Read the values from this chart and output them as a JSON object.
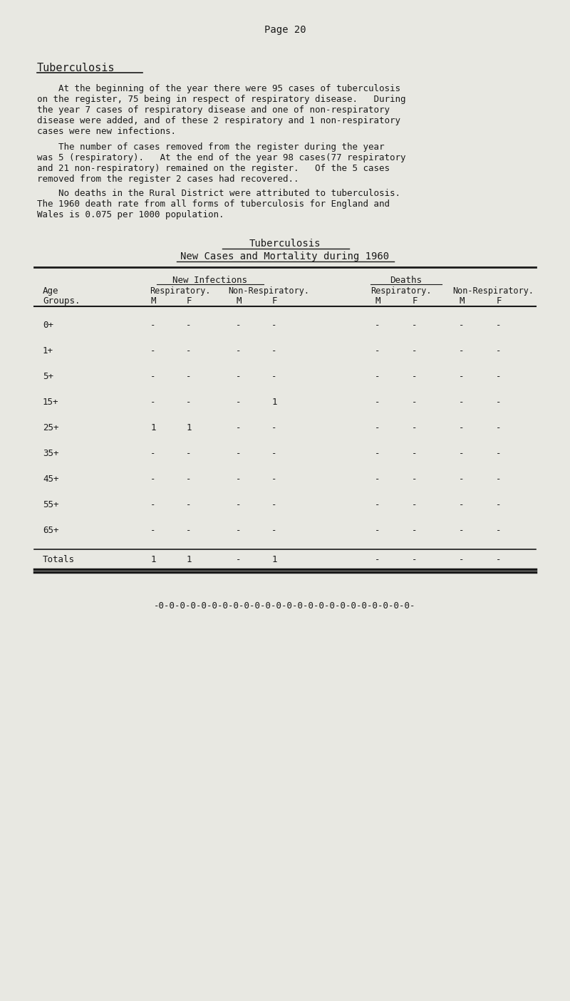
{
  "bg_color": "#e8e8e2",
  "text_color": "#1a1a1a",
  "page_header": "Page 20",
  "section_title": "Tuberculosis",
  "paragraphs": [
    "    At the beginning of the year there were 95 cases of tuberculosis\non the register, 75 being in respect of respiratory disease.   During\nthe year 7 cases of respiratory disease and one of non-respiratory\ndisease were added, and of these 2 respiratory and 1 non-respiratory\ncases were new infections.",
    "    The number of cases removed from the register during the year\nwas 5 (respiratory).   At the end of the year 98 cases(77 respiratory\nand 21 non-respiratory) remained on the register.   Of the 5 cases\nremoved from the register 2 cases had recovered..",
    "    No deaths in the Rural District were attributed to tuberculosis.\nThe 1960 death rate from all forms of tuberculosis for England and\nWales is 0.075 per 1000 population."
  ],
  "table_title1": "Tuberculosis",
  "table_title2": "New Cases and Mortality during 1960",
  "col_headers": [
    "New Infections",
    "Deaths"
  ],
  "sub_headers": [
    "Respiratory.",
    "Non-Respiratory.",
    "Respiratory.",
    "Non-Respiratory."
  ],
  "mf_headers": [
    "M",
    "F",
    "M",
    "F",
    "M",
    "F",
    "M",
    "F"
  ],
  "age_groups": [
    "0+",
    "1+",
    "5+",
    "15+",
    "25+",
    "35+",
    "45+",
    "55+",
    "65+"
  ],
  "data": {
    "0+": [
      "-",
      "-",
      "-",
      "-",
      "-",
      "-",
      "-",
      "-"
    ],
    "1+": [
      "-",
      "-",
      "-",
      "-",
      "-",
      "-",
      "-",
      "-"
    ],
    "5+": [
      "-",
      "-",
      "-",
      "-",
      "-",
      "-",
      "-",
      "-"
    ],
    "15+": [
      "-",
      "-",
      "-",
      "1",
      "-",
      "-",
      "-",
      "-"
    ],
    "25+": [
      "1",
      "1",
      "-",
      "-",
      "-",
      "-",
      "-",
      "-"
    ],
    "35+": [
      "-",
      "-",
      "-",
      "-",
      "-",
      "-",
      "-",
      "-"
    ],
    "45+": [
      "-",
      "-",
      "-",
      "-",
      "-",
      "-",
      "-",
      "-"
    ],
    "55+": [
      "-",
      "-",
      "-",
      "-",
      "-",
      "-",
      "-",
      "-"
    ],
    "65+": [
      "-",
      "-",
      "-",
      "-",
      "-",
      "-",
      "-",
      "-"
    ]
  },
  "totals": [
    "1",
    "1",
    "-",
    "1",
    "-",
    "-",
    "-",
    "-"
  ],
  "footer": "-0-0-0-0-0-0-0-0-0-0-0-0-0-0-0-0-0-0-0-0-0-0-0-0-"
}
